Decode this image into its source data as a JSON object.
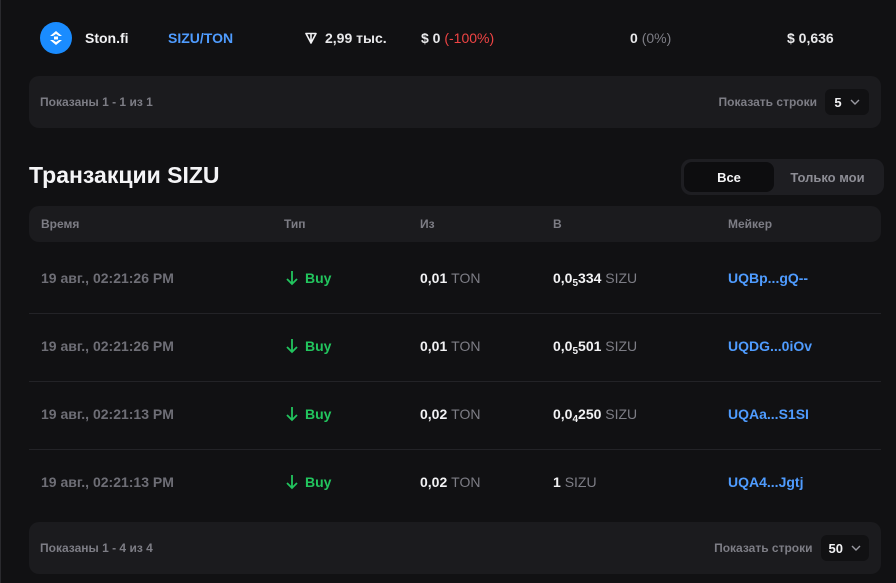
{
  "pool": {
    "dex": "Ston.fi",
    "pair": "SIZU/TON",
    "tvl": "2,99 тыс.",
    "volume": "$ 0",
    "volume_change": "(-100%)",
    "txs": "0",
    "txs_change": "(0%)",
    "price": "$ 0,636"
  },
  "pools_pager": {
    "shown": "Показаны 1 - 1 из 1",
    "rows_label": "Показать строки",
    "rows_value": "5"
  },
  "transactions": {
    "title": "Транзакции SIZU",
    "filter_all": "Все",
    "filter_mine": "Только мои",
    "columns": {
      "time": "Время",
      "type": "Тип",
      "from": "Из",
      "to": "В",
      "maker": "Мейкер"
    },
    "rows": [
      {
        "time": "19 авг., 02:21:26 PM",
        "type": "Buy",
        "from_amt": "0,01",
        "from_tk": "TON",
        "to_pre": "0,0",
        "to_sub": "5",
        "to_post": "334",
        "to_tk": "SIZU",
        "maker": "UQBp...gQ--"
      },
      {
        "time": "19 авг., 02:21:26 PM",
        "type": "Buy",
        "from_amt": "0,01",
        "from_tk": "TON",
        "to_pre": "0,0",
        "to_sub": "5",
        "to_post": "501",
        "to_tk": "SIZU",
        "maker": "UQDG...0iOv"
      },
      {
        "time": "19 авг., 02:21:13 PM",
        "type": "Buy",
        "from_amt": "0,02",
        "from_tk": "TON",
        "to_pre": "0,0",
        "to_sub": "4",
        "to_post": "250",
        "to_tk": "SIZU",
        "maker": "UQAa...S1SI"
      },
      {
        "time": "19 авг., 02:21:13 PM",
        "type": "Buy",
        "from_amt": "0,02",
        "from_tk": "TON",
        "to_pre": "1",
        "to_sub": "",
        "to_post": "",
        "to_tk": "SIZU",
        "maker": "UQA4...Jgtj"
      }
    ]
  },
  "tx_pager": {
    "shown": "Показаны 1 - 4 из 4",
    "rows_label": "Показать строки",
    "rows_value": "50"
  },
  "colors": {
    "accent": "#4f9cff",
    "buy": "#22c55e",
    "negative": "#ef4444"
  }
}
